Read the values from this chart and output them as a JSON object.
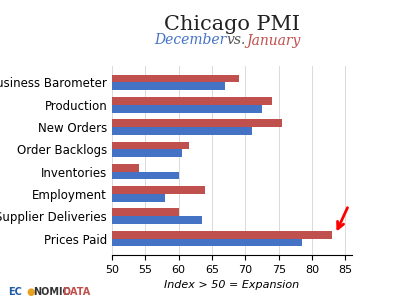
{
  "title": "Chicago PMI",
  "subtitle_december": "December",
  "subtitle_vs": " vs. ",
  "subtitle_january": "January",
  "xlabel": "Index > 50 = Expansion",
  "categories": [
    "Business Barometer",
    "Production",
    "New Orders",
    "Order Backlogs",
    "Inventories",
    "Employment",
    "Supplier Deliveries",
    "Prices Paid"
  ],
  "december_values": [
    67.0,
    72.5,
    71.0,
    60.5,
    60.0,
    58.0,
    63.5,
    78.5
  ],
  "january_values": [
    69.0,
    74.0,
    75.5,
    61.5,
    54.0,
    64.0,
    60.0,
    83.0
  ],
  "december_color": "#4472C4",
  "january_color": "#C0504D",
  "xlim": [
    50,
    86
  ],
  "xticks": [
    50,
    55,
    60,
    65,
    70,
    75,
    80,
    85
  ],
  "title_fontsize": 15,
  "subtitle_fontsize": 10,
  "label_fontsize": 8.5,
  "tick_fontsize": 8,
  "background_color": "#ffffff"
}
